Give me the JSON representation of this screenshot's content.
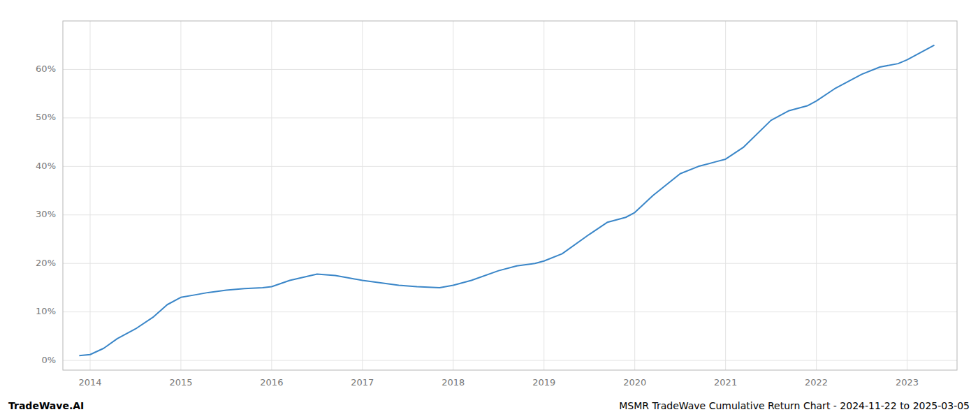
{
  "chart_data": {
    "type": "line",
    "title": "MSMR TradeWave Cumulative Return Chart - 2024-11-22 to 2025-03-05",
    "annotations": [
      "TradeWave.AI"
    ],
    "color": "#3a86c8",
    "grid": true,
    "x": [
      2013.88,
      2014.0,
      2014.15,
      2014.3,
      2014.5,
      2014.7,
      2014.85,
      2015.0,
      2015.15,
      2015.3,
      2015.5,
      2015.7,
      2015.9,
      2016.0,
      2016.2,
      2016.5,
      2016.7,
      2016.85,
      2017.0,
      2017.2,
      2017.4,
      2017.6,
      2017.85,
      2018.0,
      2018.2,
      2018.5,
      2018.7,
      2018.9,
      2019.0,
      2019.2,
      2019.5,
      2019.7,
      2019.9,
      2020.0,
      2020.2,
      2020.5,
      2020.7,
      2020.9,
      2021.0,
      2021.2,
      2021.5,
      2021.7,
      2021.9,
      2022.0,
      2022.2,
      2022.5,
      2022.7,
      2022.9,
      2023.0,
      2023.3
    ],
    "values": [
      1.0,
      1.2,
      2.5,
      4.5,
      6.5,
      9.0,
      11.5,
      13.0,
      13.5,
      14.0,
      14.5,
      14.8,
      15.0,
      15.2,
      16.5,
      17.8,
      17.5,
      17.0,
      16.5,
      16.0,
      15.5,
      15.2,
      15.0,
      15.5,
      16.5,
      18.5,
      19.5,
      20.0,
      20.5,
      22.0,
      26.0,
      28.5,
      29.5,
      30.5,
      34.0,
      38.5,
      40.0,
      41.0,
      41.5,
      44.0,
      49.5,
      51.5,
      52.5,
      53.5,
      56.0,
      59.0,
      60.5,
      61.2,
      62.0,
      65.0
    ],
    "xlim": [
      2013.7,
      2023.55
    ],
    "xticks": [
      2014,
      2015,
      2016,
      2017,
      2018,
      2019,
      2020,
      2021,
      2022,
      2023
    ],
    "ylim": [
      -2,
      70
    ],
    "yticks": [
      {
        "value": 0,
        "label": "0%"
      },
      {
        "value": 10,
        "label": "10%"
      },
      {
        "value": 20,
        "label": "20%"
      },
      {
        "value": 30,
        "label": "30%"
      },
      {
        "value": 40,
        "label": "40%"
      },
      {
        "value": 50,
        "label": "50%"
      },
      {
        "value": 60,
        "label": "60%"
      }
    ]
  }
}
